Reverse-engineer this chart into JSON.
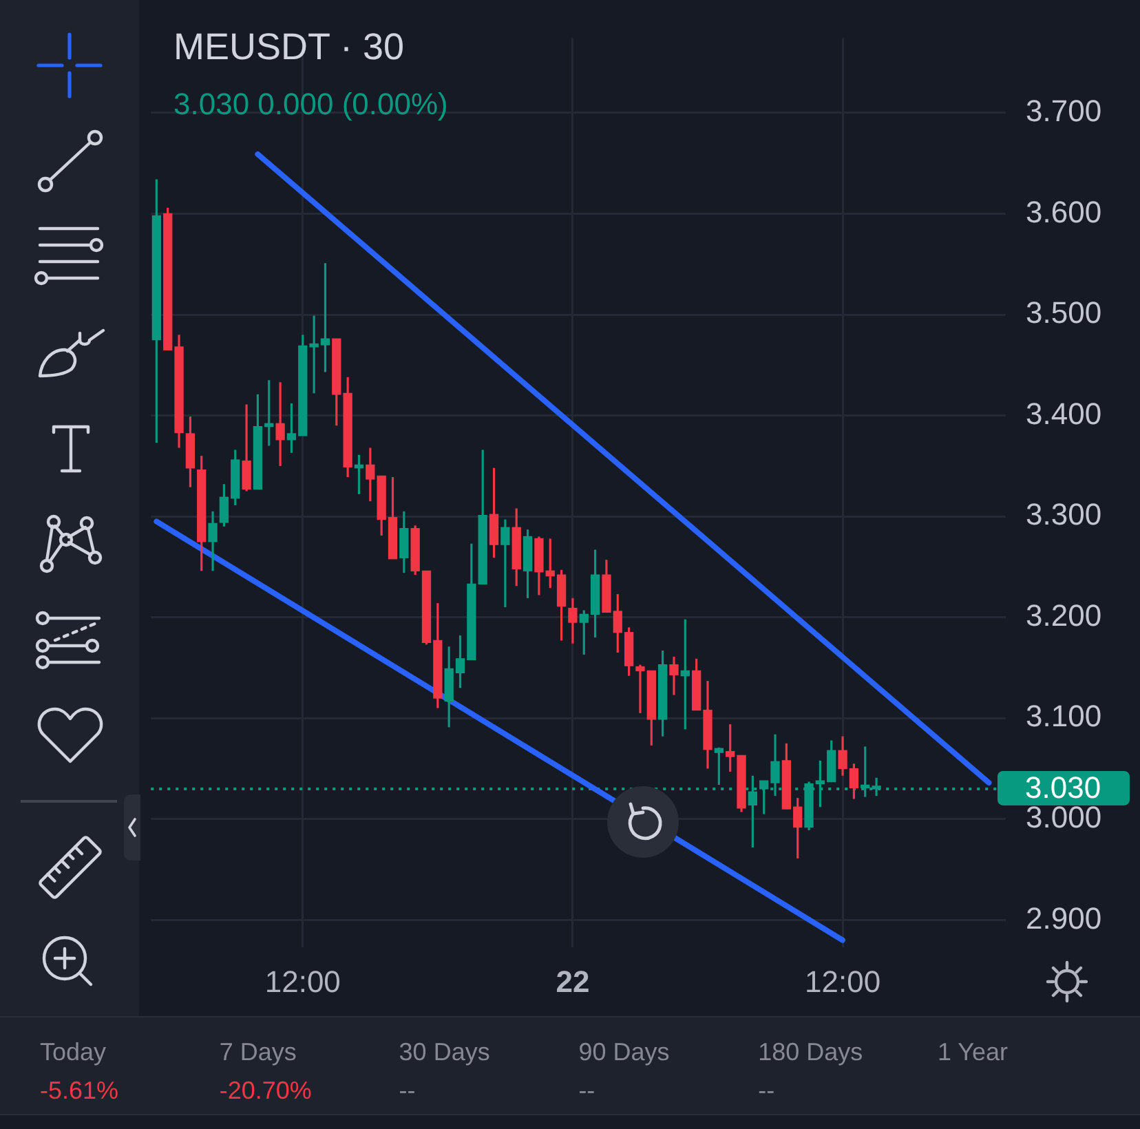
{
  "chart_data": {
    "type": "candlestick",
    "title": "MEUSDT · 30",
    "subtitle": "3.030 0.000 (0.00%)",
    "categories": [
      null,
      null,
      null,
      null,
      null,
      null,
      null,
      null,
      null,
      null,
      null,
      null,
      null,
      "12:00",
      null,
      null,
      null,
      null,
      null,
      null,
      null,
      null,
      null,
      null,
      null,
      null,
      null,
      null,
      null,
      null,
      null,
      null,
      null,
      null,
      null,
      null,
      null,
      "22",
      null,
      null,
      null,
      null,
      null,
      null,
      null,
      null,
      null,
      null,
      null,
      null,
      null,
      null,
      null,
      null,
      null,
      null,
      null,
      null,
      null,
      null,
      null,
      "12:00",
      null,
      null,
      null,
      null,
      null,
      null,
      null,
      null,
      null,
      null,
      null,
      null,
      null,
      null
    ],
    "ohlc": [
      [
        3.475,
        3.634,
        3.373,
        3.598
      ],
      [
        3.6,
        3.606,
        3.465,
        3.465
      ],
      [
        3.468,
        3.48,
        3.368,
        3.383
      ],
      [
        3.382,
        3.399,
        3.329,
        3.348
      ],
      [
        3.346,
        3.36,
        3.246,
        3.275
      ],
      [
        3.275,
        3.305,
        3.246,
        3.293
      ],
      [
        3.294,
        3.332,
        3.29,
        3.319
      ],
      [
        3.318,
        3.366,
        3.311,
        3.356
      ],
      [
        3.355,
        3.411,
        3.325,
        3.327
      ],
      [
        3.327,
        3.421,
        3.327,
        3.389
      ],
      [
        3.389,
        3.435,
        3.37,
        3.392
      ],
      [
        3.392,
        3.433,
        3.35,
        3.376
      ],
      [
        3.376,
        3.412,
        3.363,
        3.382
      ],
      [
        3.38,
        3.48,
        3.38,
        3.469
      ],
      [
        3.468,
        3.499,
        3.422,
        3.471
      ],
      [
        3.47,
        3.551,
        3.443,
        3.476
      ],
      [
        3.476,
        3.476,
        3.39,
        3.421
      ],
      [
        3.422,
        3.438,
        3.339,
        3.349
      ],
      [
        3.348,
        3.361,
        3.322,
        3.351
      ],
      [
        3.351,
        3.368,
        3.315,
        3.337
      ],
      [
        3.34,
        3.34,
        3.281,
        3.297
      ],
      [
        3.299,
        3.339,
        3.258,
        3.258
      ],
      [
        3.259,
        3.305,
        3.244,
        3.288
      ],
      [
        3.288,
        3.291,
        3.242,
        3.246
      ],
      [
        3.246,
        3.246,
        3.173,
        3.175
      ],
      [
        3.177,
        3.214,
        3.11,
        3.12
      ],
      [
        3.117,
        3.171,
        3.091,
        3.149
      ],
      [
        3.145,
        3.182,
        3.13,
        3.159
      ],
      [
        3.158,
        3.273,
        3.158,
        3.233
      ],
      [
        3.233,
        3.366,
        3.233,
        3.301
      ],
      [
        3.302,
        3.348,
        3.259,
        3.272
      ],
      [
        3.272,
        3.297,
        3.21,
        3.289
      ],
      [
        3.289,
        3.308,
        3.231,
        3.248
      ],
      [
        3.246,
        3.287,
        3.219,
        3.28
      ],
      [
        3.278,
        3.28,
        3.222,
        3.245
      ],
      [
        3.246,
        3.278,
        3.229,
        3.241
      ],
      [
        3.242,
        3.247,
        3.177,
        3.211
      ],
      [
        3.209,
        3.219,
        3.174,
        3.195
      ],
      [
        3.195,
        3.207,
        3.163,
        3.203
      ],
      [
        3.203,
        3.267,
        3.18,
        3.242
      ],
      [
        3.242,
        3.257,
        3.205,
        3.205
      ],
      [
        3.206,
        3.223,
        3.165,
        3.185
      ],
      [
        3.185,
        3.19,
        3.142,
        3.152
      ],
      [
        3.151,
        3.153,
        3.105,
        3.147
      ],
      [
        3.147,
        3.147,
        3.073,
        3.099
      ],
      [
        3.099,
        3.167,
        3.082,
        3.153
      ],
      [
        3.153,
        3.161,
        3.123,
        3.143
      ],
      [
        3.142,
        3.198,
        3.089,
        3.147
      ],
      [
        3.147,
        3.159,
        3.108,
        3.108
      ],
      [
        3.108,
        3.137,
        3.05,
        3.069
      ],
      [
        3.066,
        3.071,
        3.034,
        3.07
      ],
      [
        3.067,
        3.094,
        3.047,
        3.062
      ],
      [
        3.063,
        3.063,
        3.007,
        3.011
      ],
      [
        3.014,
        3.043,
        2.972,
        3.027
      ],
      [
        3.03,
        3.038,
        3.005,
        3.038
      ],
      [
        3.036,
        3.084,
        3.023,
        3.057
      ],
      [
        3.058,
        3.075,
        3.01,
        3.01
      ],
      [
        3.012,
        3.021,
        2.961,
        2.992
      ],
      [
        2.992,
        3.037,
        2.989,
        3.035
      ],
      [
        3.035,
        3.058,
        3.012,
        3.038
      ],
      [
        3.037,
        3.078,
        3.037,
        3.068
      ],
      [
        3.068,
        3.082,
        3.043,
        3.05
      ],
      [
        3.05,
        3.055,
        3.02,
        3.031
      ],
      [
        3.031,
        3.072,
        3.022,
        3.033
      ],
      [
        3.03,
        3.041,
        3.023,
        3.03
      ],
      null,
      null,
      null,
      null,
      null,
      null,
      null,
      null,
      null,
      null,
      null
    ],
    "colors": [
      "#089981",
      "#f23645",
      "#f23645",
      "#f23645",
      "#f23645",
      "#089981",
      "#089981",
      "#089981",
      "#f23645",
      "#089981",
      "#089981",
      "#f23645",
      "#089981",
      "#089981",
      "#089981",
      "#089981",
      "#f23645",
      "#f23645",
      "#089981",
      "#f23645",
      "#f23645",
      "#f23645",
      "#089981",
      "#f23645",
      "#f23645",
      "#f23645",
      "#089981",
      "#089981",
      "#089981",
      "#089981",
      "#f23645",
      "#089981",
      "#f23645",
      "#089981",
      "#f23645",
      "#f23645",
      "#f23645",
      "#f23645",
      "#089981",
      "#089981",
      "#f23645",
      "#f23645",
      "#f23645",
      "#f23645",
      "#f23645",
      "#089981",
      "#f23645",
      "#089981",
      "#f23645",
      "#f23645",
      "#089981",
      "#f23645",
      "#f23645",
      "#089981",
      "#089981",
      "#089981",
      "#f23645",
      "#f23645",
      "#089981",
      "#089981",
      "#089981",
      "#f23645",
      "#f23645",
      "#089981",
      "#089981",
      null,
      null,
      null,
      null,
      null,
      null,
      null,
      null,
      null,
      null,
      null
    ],
    "series": [
      {
        "type": "line",
        "color": "#2962ff",
        "values": [
          null,
          null,
          null,
          null,
          null,
          null,
          null,
          null,
          null,
          3.659,
          null,
          null,
          null,
          null,
          null,
          null,
          null,
          null,
          null,
          null,
          null,
          null,
          null,
          null,
          null,
          null,
          null,
          null,
          null,
          null,
          null,
          null,
          null,
          null,
          null,
          null,
          null,
          null,
          null,
          null,
          null,
          null,
          null,
          null,
          null,
          null,
          null,
          null,
          null,
          null,
          null,
          null,
          null,
          null,
          null,
          null,
          null,
          null,
          null,
          null,
          null,
          null,
          null,
          null,
          null,
          null,
          null,
          null,
          null,
          null,
          null,
          null,
          null,
          null,
          3.036,
          null
        ]
      },
      {
        "type": "line",
        "color": "#2962ff",
        "values": [
          3.295,
          null,
          null,
          null,
          null,
          null,
          null,
          null,
          null,
          null,
          null,
          null,
          null,
          null,
          null,
          null,
          null,
          null,
          null,
          null,
          null,
          null,
          null,
          null,
          null,
          null,
          null,
          null,
          null,
          null,
          null,
          null,
          null,
          null,
          null,
          null,
          null,
          null,
          null,
          null,
          null,
          null,
          null,
          null,
          null,
          null,
          null,
          null,
          null,
          null,
          null,
          null,
          null,
          null,
          null,
          null,
          null,
          null,
          null,
          null,
          null,
          2.88,
          null,
          null,
          null,
          null,
          null,
          null,
          null,
          null,
          null,
          null,
          null,
          null,
          null,
          null
        ]
      }
    ],
    "ref_lines": [
      {
        "axis": "y",
        "value": 3.03,
        "label": "3.030",
        "color": "#089981",
        "line_style": "dotted"
      }
    ],
    "ylim": [
      2.873,
      3.774
    ],
    "yticks": [
      {
        "value": 2.9,
        "label": "2.900"
      },
      {
        "value": 3.0,
        "label": "3.000"
      },
      {
        "value": 3.1,
        "label": "3.100"
      },
      {
        "value": 3.2,
        "label": "3.200"
      },
      {
        "value": 3.3,
        "label": "3.300"
      },
      {
        "value": 3.4,
        "label": "3.400"
      },
      {
        "value": 3.5,
        "label": "3.500"
      },
      {
        "value": 3.6,
        "label": "3.600"
      },
      {
        "value": 3.7,
        "label": "3.700"
      }
    ],
    "grid": true,
    "marker": "none",
    "annotations": [
      "Today",
      "-5.61%",
      "7 Days",
      "-20.70%",
      "30 Days",
      "--",
      "90 Days",
      "--",
      "180 Days",
      "--",
      "1 Year"
    ]
  }
}
